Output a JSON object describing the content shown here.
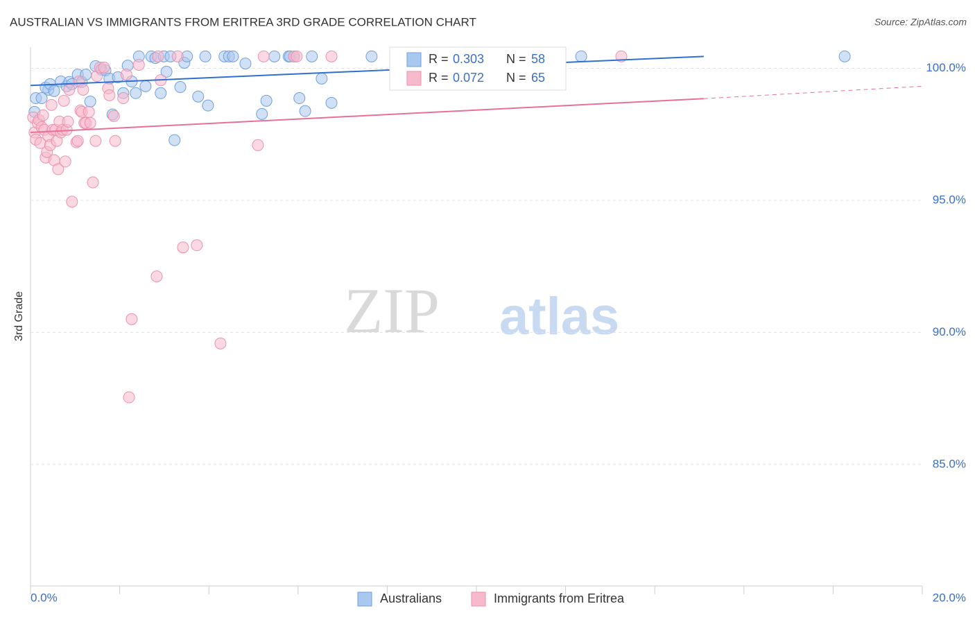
{
  "chart_data": {
    "type": "scatter",
    "title": "AUSTRALIAN VS IMMIGRANTS FROM ERITREA 3RD GRADE CORRELATION CHART",
    "source": "Source: ZipAtlas.com",
    "y_label": "3rd Grade",
    "watermark": {
      "bold": "ZIP",
      "light": "atlas"
    },
    "legend_stat_labels": {
      "r": "R =",
      "n": "N ="
    },
    "xlim": [
      0,
      20
    ],
    "ylim": [
      80.4,
      100.8
    ],
    "xticks": [
      {
        "value": 0,
        "label": "0.0%"
      },
      {
        "value": 2,
        "label": null
      },
      {
        "value": 4,
        "label": null
      },
      {
        "value": 6,
        "label": null
      },
      {
        "value": 8,
        "label": null
      },
      {
        "value": 10,
        "label": null
      },
      {
        "value": 12,
        "label": null
      },
      {
        "value": 14,
        "label": null
      },
      {
        "value": 16,
        "label": null
      },
      {
        "value": 18,
        "label": null
      },
      {
        "value": 20,
        "label": "20.0%"
      }
    ],
    "yticks": [
      {
        "value": 85,
        "label": "85.0%"
      },
      {
        "value": 90,
        "label": "90.0%"
      },
      {
        "value": 95,
        "label": "95.0%"
      },
      {
        "value": 100,
        "label": "100.0%"
      }
    ],
    "grid": true,
    "series": [
      {
        "name": "Australians",
        "color": "#a9c8ef",
        "stroke": "#6f9fde",
        "line_color": "#2f6fd0",
        "r": 0.303,
        "n": 58,
        "x": [
          0.12,
          0.25,
          0.09,
          0.4,
          0.34,
          0.44,
          0.53,
          0.68,
          0.81,
          0.87,
          0.93,
          1.06,
          1.15,
          1.24,
          1.34,
          1.46,
          1.59,
          1.68,
          1.77,
          1.84,
          1.96,
          2.08,
          2.18,
          2.27,
          2.36,
          2.43,
          2.58,
          2.71,
          2.8,
          2.92,
          2.99,
          3.05,
          3.14,
          3.23,
          3.36,
          3.45,
          3.51,
          3.76,
          3.92,
          3.98,
          4.35,
          4.45,
          4.54,
          4.82,
          5.19,
          5.29,
          5.47,
          5.79,
          5.82,
          5.91,
          6.03,
          6.16,
          6.31,
          6.53,
          6.75,
          7.65,
          12.35,
          18.26
        ],
        "y": [
          98.87,
          98.87,
          98.35,
          99.19,
          99.27,
          99.4,
          99.14,
          99.5,
          99.32,
          99.48,
          99.4,
          99.76,
          99.48,
          99.76,
          98.74,
          100.08,
          99.95,
          99.92,
          99.61,
          98.25,
          99.66,
          99.06,
          100.1,
          99.5,
          99.06,
          100.45,
          99.32,
          100.45,
          100.39,
          99.06,
          100.45,
          99.87,
          100.45,
          97.28,
          99.29,
          100.21,
          100.45,
          98.93,
          100.45,
          98.59,
          100.45,
          100.45,
          100.45,
          100.18,
          98.27,
          98.77,
          100.45,
          100.45,
          100.45,
          100.45,
          98.87,
          98.38,
          100.45,
          99.61,
          98.69,
          100.45,
          100.45,
          100.45
        ],
        "trend": {
          "x": [
            0,
            15.1
          ],
          "y": [
            99.35,
            100.45
          ]
        }
      },
      {
        "name": "Immigrants from Eritrea",
        "color": "#f7b9cc",
        "stroke": "#ec90ae",
        "line_color": "#e5709a",
        "r": 0.072,
        "n": 65,
        "x": [
          0.06,
          0.09,
          0.12,
          0.16,
          0.19,
          0.22,
          0.25,
          0.28,
          0.31,
          0.34,
          0.37,
          0.4,
          0.44,
          0.47,
          0.5,
          0.53,
          0.56,
          0.59,
          0.62,
          0.65,
          0.68,
          0.72,
          0.75,
          0.78,
          0.81,
          0.84,
          0.87,
          0.93,
          1.03,
          1.06,
          1.09,
          1.12,
          1.15,
          1.18,
          1.21,
          1.24,
          1.31,
          1.34,
          1.4,
          1.46,
          1.49,
          1.56,
          1.65,
          1.74,
          1.77,
          1.87,
          1.9,
          2.08,
          2.15,
          2.21,
          2.27,
          2.43,
          2.83,
          2.86,
          2.92,
          3.3,
          3.42,
          3.73,
          4.26,
          5.1,
          5.23,
          5.91,
          5.97,
          6.75,
          13.25
        ],
        "y": [
          98.14,
          97.57,
          97.3,
          97.93,
          98.04,
          97.17,
          97.77,
          98.22,
          97.67,
          96.62,
          96.83,
          97.43,
          97.09,
          98.61,
          97.67,
          96.52,
          97.67,
          97.25,
          96.18,
          97.98,
          97.57,
          97.67,
          98.77,
          96.47,
          97.67,
          97.98,
          99.19,
          94.95,
          97.2,
          97.25,
          99.5,
          98.4,
          98.35,
          99.19,
          97.93,
          97.93,
          98.35,
          97.93,
          95.68,
          97.25,
          99.71,
          100.03,
          100.03,
          99.24,
          98.98,
          98.19,
          97.25,
          98.87,
          99.76,
          87.54,
          90.5,
          100.13,
          92.12,
          100.45,
          99.55,
          100.45,
          93.22,
          93.3,
          89.58,
          97.09,
          100.45,
          100.45,
          100.45,
          100.45,
          100.45
        ],
        "trend": {
          "x": [
            0,
            15.1,
            20
          ],
          "y": [
            97.57,
            98.85,
            99.32
          ]
        }
      }
    ]
  }
}
